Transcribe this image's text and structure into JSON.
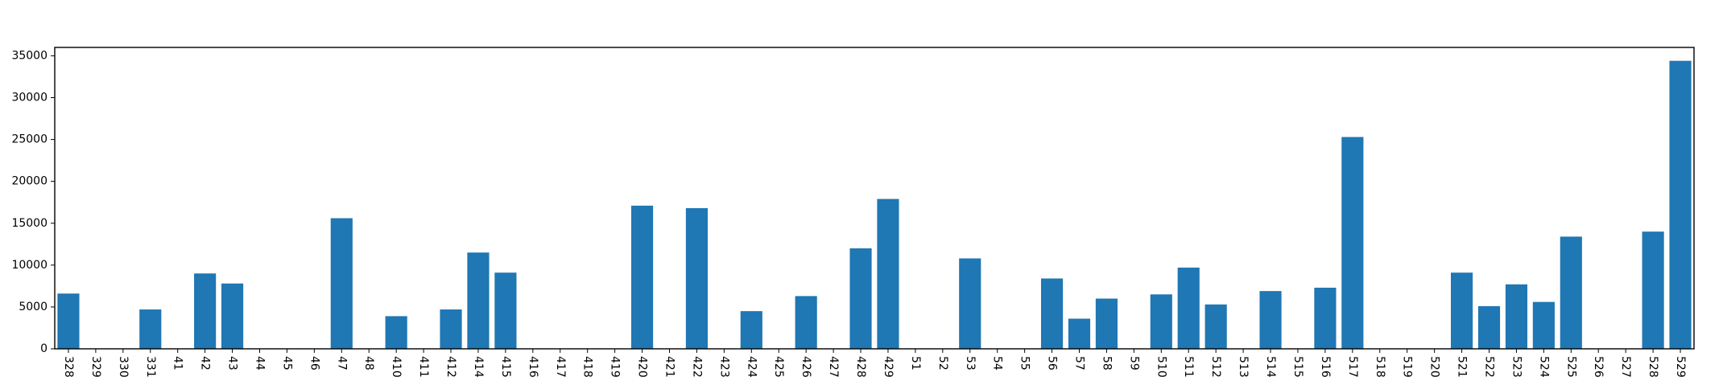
{
  "chart_data": {
    "type": "bar",
    "categories": [
      "328",
      "329",
      "330",
      "331",
      "41",
      "42",
      "43",
      "44",
      "45",
      "46",
      "47",
      "48",
      "410",
      "411",
      "412",
      "414",
      "415",
      "416",
      "417",
      "418",
      "419",
      "420",
      "421",
      "422",
      "423",
      "424",
      "425",
      "426",
      "427",
      "428",
      "429",
      "51",
      "52",
      "53",
      "54",
      "55",
      "56",
      "57",
      "58",
      "59",
      "510",
      "511",
      "512",
      "513",
      "514",
      "515",
      "516",
      "517",
      "518",
      "519",
      "520",
      "521",
      "522",
      "523",
      "524",
      "525",
      "526",
      "527",
      "528",
      "529"
    ],
    "values": [
      6600,
      0,
      0,
      4700,
      0,
      9000,
      7800,
      0,
      0,
      0,
      15600,
      0,
      3900,
      0,
      4700,
      11500,
      9100,
      0,
      0,
      0,
      0,
      17100,
      0,
      16800,
      0,
      4500,
      0,
      6300,
      0,
      12000,
      17900,
      0,
      0,
      10800,
      0,
      0,
      8400,
      3600,
      6000,
      0,
      6500,
      9700,
      5300,
      0,
      6900,
      0,
      7300,
      25300,
      0,
      0,
      0,
      9100,
      5100,
      7700,
      5600,
      13400,
      0,
      0,
      14000,
      34400
    ],
    "ylim": [
      0,
      36000
    ],
    "yticks": [
      0,
      5000,
      10000,
      15000,
      20000,
      25000,
      30000,
      35000
    ],
    "title": "",
    "xlabel": "",
    "ylabel": "",
    "grid": false,
    "bar_color": "#1f77b4",
    "axis_color": "#000000"
  }
}
